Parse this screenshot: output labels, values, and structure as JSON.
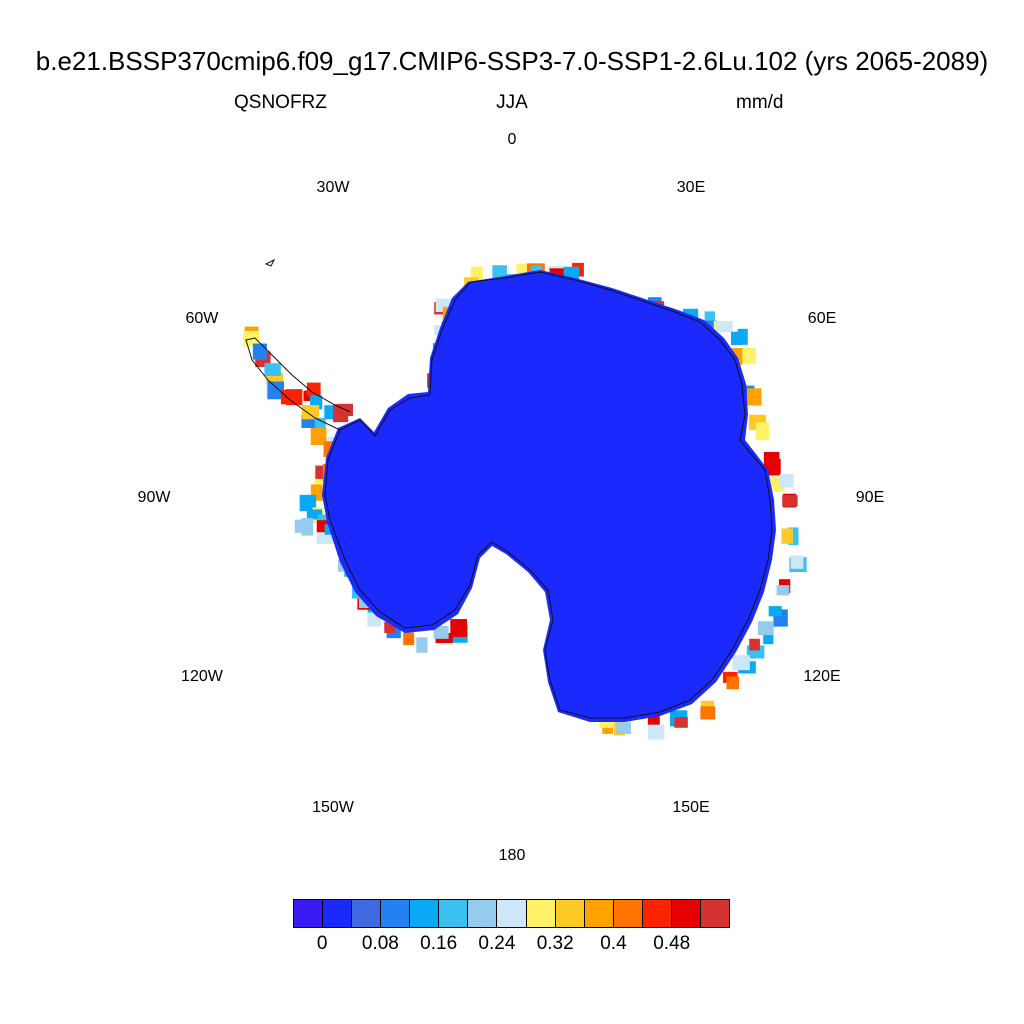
{
  "header": {
    "title": "b.e21.BSSP370cmip6.f09_g17.CMIP6-SSP3-7.0-SSP1-2.6Lu.102 (yrs 2065-2089)",
    "variable": "QSNOFRZ",
    "season": "JJA",
    "units": "mm/d"
  },
  "map": {
    "projection": "south-polar-stereographic",
    "longitude_labels": [
      {
        "text": "0",
        "lon": 0
      },
      {
        "text": "30E",
        "lon": 30
      },
      {
        "text": "60E",
        "lon": 60
      },
      {
        "text": "90E",
        "lon": 90
      },
      {
        "text": "120E",
        "lon": 120
      },
      {
        "text": "150E",
        "lon": 150
      },
      {
        "text": "180",
        "lon": 180
      },
      {
        "text": "150W",
        "lon": -150
      },
      {
        "text": "120W",
        "lon": -120
      },
      {
        "text": "90W",
        "lon": -90
      },
      {
        "text": "60W",
        "lon": -60
      },
      {
        "text": "30W",
        "lon": -30
      }
    ],
    "interior_color": "#1a2aff"
  },
  "colorbar": {
    "colors": [
      "#3b1bf5",
      "#1a2aff",
      "#4169e1",
      "#2382f0",
      "#0aa9f5",
      "#3ac0f2",
      "#94cbee",
      "#cde7f8",
      "#fff266",
      "#ffc926",
      "#ffa200",
      "#ff7300",
      "#ff2200",
      "#e60000",
      "#d63232"
    ],
    "labels": [
      "0",
      "0.08",
      "0.16",
      "0.24",
      "0.32",
      "0.4",
      "0.48"
    ]
  }
}
